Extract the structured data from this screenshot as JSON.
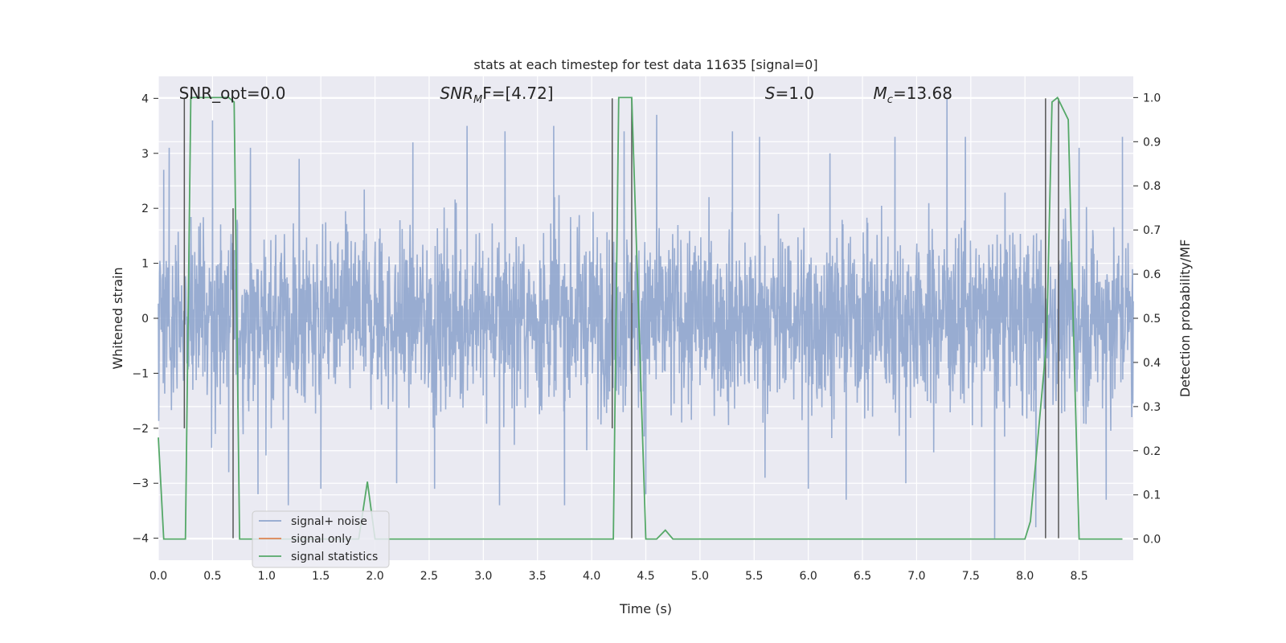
{
  "chart_data": {
    "type": "line",
    "title": "stats at each timestep for test data 11635 [signal=0]",
    "xlabel": "Time (s)",
    "ylabel": "Whitened strain",
    "ylabel_right": "Detection probability/MF",
    "xlim": [
      0,
      9.0
    ],
    "ylim": [
      -4.4,
      4.4
    ],
    "ylim_right": [
      -0.048,
      1.048
    ],
    "x_ticks": [
      0.0,
      0.5,
      1.0,
      1.5,
      2.0,
      2.5,
      3.0,
      3.5,
      4.0,
      4.5,
      5.0,
      5.5,
      6.0,
      6.5,
      7.0,
      7.5,
      8.0,
      8.5
    ],
    "x_tick_labels": [
      "0.0",
      "0.5",
      "1.0",
      "1.5",
      "2.0",
      "2.5",
      "3.0",
      "3.5",
      "4.0",
      "4.5",
      "5.0",
      "5.5",
      "6.0",
      "6.5",
      "7.0",
      "7.5",
      "8.0",
      "8.5"
    ],
    "y_ticks": [
      -4,
      -3,
      -2,
      -1,
      0,
      1,
      2,
      3,
      4
    ],
    "y_tick_labels": [
      "−4",
      "−3",
      "−2",
      "−1",
      "0",
      "1",
      "2",
      "3",
      "4"
    ],
    "y_right_ticks": [
      0.0,
      0.1,
      0.2,
      0.3,
      0.4,
      0.5,
      0.6,
      0.7,
      0.8,
      0.9,
      1.0
    ],
    "y_right_tick_labels": [
      "0.0",
      "0.1",
      "0.2",
      "0.3",
      "0.4",
      "0.5",
      "0.6",
      "0.7",
      "0.8",
      "0.9",
      "1.0"
    ],
    "grid": true,
    "legend_position": "lower-left",
    "annotations": {
      "snr_opt": "SNR_opt=0.0",
      "snr_mf_main": "SNR",
      "snr_mf_sub": "M",
      "snr_mf_tail": "F=[4.72]",
      "s_main": "S",
      "s_tail": "=1.0",
      "mc_main": "M",
      "mc_sub": "c",
      "mc_tail": "=13.68"
    },
    "series": [
      {
        "name": "signal+ noise",
        "color": "#8fa5cd",
        "note_envelope": "noise fluctuating roughly between -3.3 and 3.8",
        "envelope_peaks": [
          [
            0.05,
            2.7
          ],
          [
            0.1,
            3.1
          ],
          [
            0.5,
            3.6
          ],
          [
            0.85,
            3.1
          ],
          [
            1.3,
            2.9
          ],
          [
            2.35,
            3.2
          ],
          [
            2.85,
            3.5
          ],
          [
            3.2,
            3.4
          ],
          [
            3.65,
            3.5
          ],
          [
            4.3,
            3.4
          ],
          [
            4.6,
            3.7
          ],
          [
            5.3,
            3.4
          ],
          [
            5.55,
            3.3
          ],
          [
            6.2,
            3.0
          ],
          [
            6.8,
            3.3
          ],
          [
            7.28,
            4.0
          ],
          [
            7.45,
            3.3
          ],
          [
            8.5,
            3.1
          ],
          [
            8.9,
            3.3
          ]
        ],
        "envelope_troughs": [
          [
            0.65,
            -2.8
          ],
          [
            0.92,
            -3.2
          ],
          [
            1.2,
            -3.4
          ],
          [
            1.5,
            -3.1
          ],
          [
            2.2,
            -3.0
          ],
          [
            2.55,
            -3.1
          ],
          [
            3.15,
            -3.4
          ],
          [
            3.75,
            -3.4
          ],
          [
            4.5,
            -3.2
          ],
          [
            5.6,
            -2.9
          ],
          [
            6.0,
            -3.1
          ],
          [
            6.35,
            -3.3
          ],
          [
            6.9,
            -3.0
          ],
          [
            7.72,
            -4.0
          ],
          [
            8.1,
            -3.8
          ],
          [
            8.75,
            -3.3
          ]
        ]
      },
      {
        "name": "signal only",
        "color": "#dd8452",
        "values": []
      },
      {
        "name": "signal statistics",
        "color": "#55a868",
        "axis": "right",
        "x": [
          0.0,
          0.05,
          0.1,
          0.18,
          0.25,
          0.3,
          0.35,
          0.5,
          0.65,
          0.7,
          0.75,
          0.8,
          1.0,
          1.5,
          1.85,
          1.93,
          2.0,
          2.5,
          3.0,
          3.5,
          4.0,
          4.15,
          4.2,
          4.25,
          4.37,
          4.5,
          4.6,
          4.68,
          4.75,
          4.9,
          5.0,
          6.0,
          7.0,
          7.7,
          7.75,
          7.8,
          8.0,
          8.05,
          8.2,
          8.25,
          8.3,
          8.4,
          8.45,
          8.5,
          8.6,
          8.9
        ],
        "y": [
          0.23,
          0.0,
          0.0,
          0.0,
          0.0,
          1.0,
          1.0,
          1.0,
          1.0,
          0.99,
          0.0,
          0.0,
          0.0,
          0.0,
          0.0,
          0.13,
          0.0,
          0.0,
          0.0,
          0.0,
          0.0,
          0.0,
          0.0,
          1.0,
          1.0,
          0.0,
          0.0,
          0.02,
          0.0,
          0.0,
          0.0,
          0.0,
          0.0,
          0.0,
          0.0,
          0.0,
          0.0,
          0.04,
          0.45,
          0.99,
          1.0,
          0.95,
          0.45,
          0.0,
          0.0,
          0.0
        ]
      }
    ],
    "vertical_markers": {
      "color": "#555555",
      "segments": [
        {
          "x": 0.24,
          "y_from": -2.0,
          "y_to": 4.0
        },
        {
          "x": 0.69,
          "y_from": -4.0,
          "y_to": 2.0
        },
        {
          "x": 4.19,
          "y_from": -2.0,
          "y_to": 4.0
        },
        {
          "x": 4.37,
          "y_from": -4.0,
          "y_to": 4.0
        },
        {
          "x": 8.19,
          "y_from": -4.0,
          "y_to": 4.0
        },
        {
          "x": 8.31,
          "y_from": -4.0,
          "y_to": 4.0
        }
      ]
    },
    "legend": [
      {
        "label": "signal+ noise",
        "color": "#8fa5cd"
      },
      {
        "label": "signal only",
        "color": "#dd8452"
      },
      {
        "label": "signal statistics",
        "color": "#55a868"
      }
    ]
  }
}
